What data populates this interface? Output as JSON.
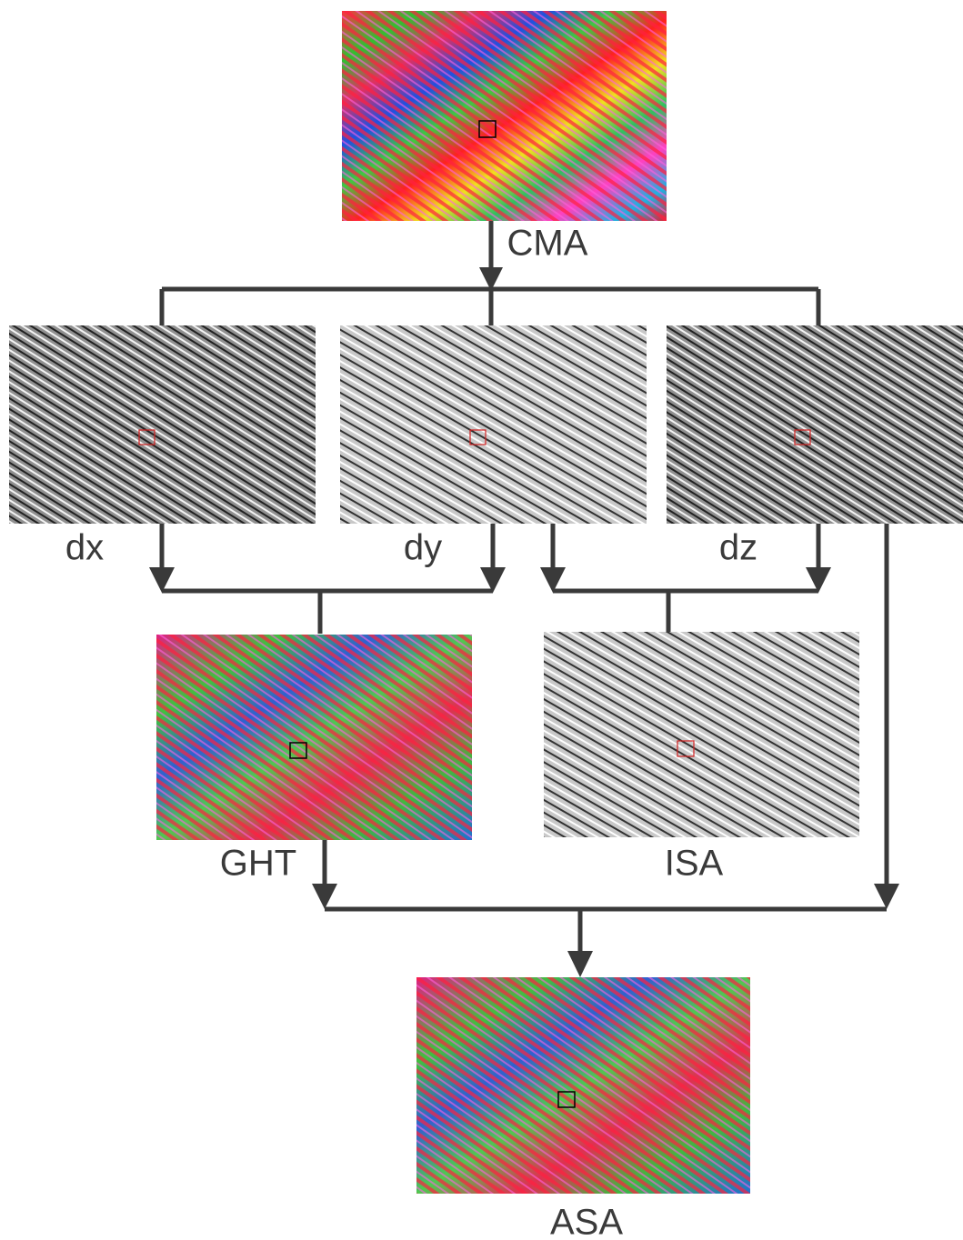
{
  "nodes": [
    {
      "label": "CMA"
    },
    {
      "label": "dx"
    },
    {
      "label": "dy"
    },
    {
      "label": "dz"
    },
    {
      "label": "GHT"
    },
    {
      "label": "ISA"
    },
    {
      "label": "ASA"
    }
  ]
}
